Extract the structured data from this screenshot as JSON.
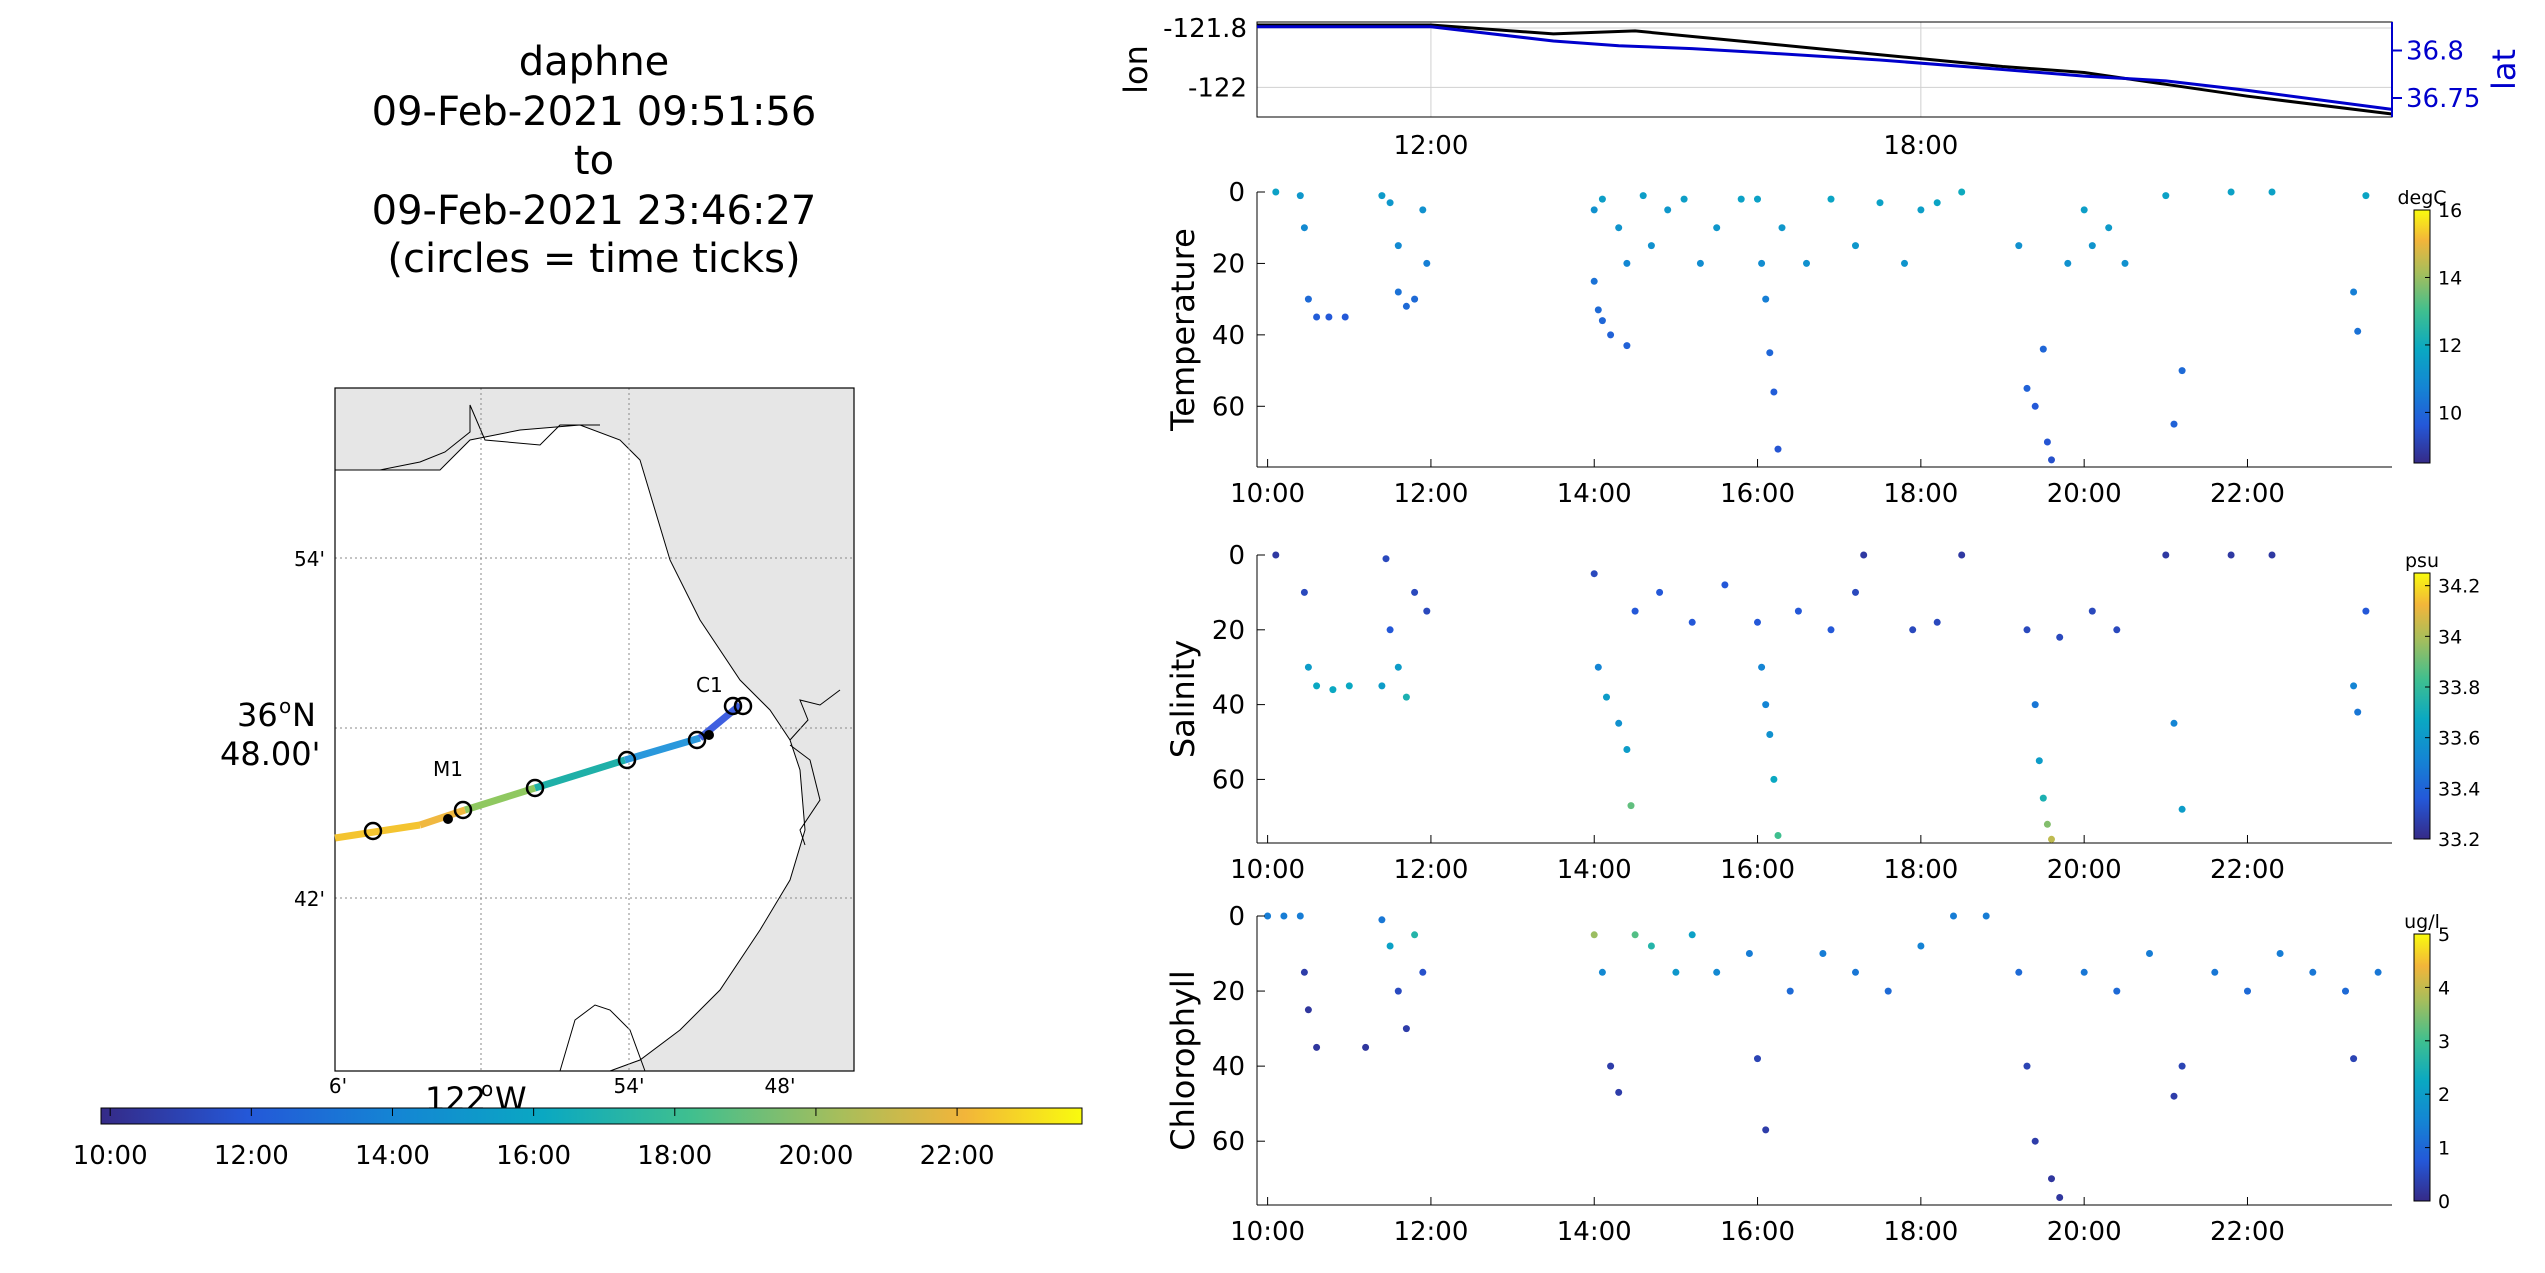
{
  "title_lines": [
    "daphne",
    "09-Feb-2021 09:51:56",
    "to",
    "09-Feb-2021 23:46:27",
    "(circles = time ticks)"
  ],
  "map": {
    "lat_labels": [
      "54'",
      "36",
      "o",
      "N",
      "48.00'",
      "42'"
    ],
    "lon_labels": [
      "6'",
      "122",
      "o",
      "W",
      "54'",
      "48'"
    ],
    "stations": [
      {
        "name": "M1"
      },
      {
        "name": "C1"
      }
    ],
    "time_colorbar_ticks": [
      "10:00",
      "12:00",
      "14:00",
      "16:00",
      "18:00",
      "20:00",
      "22:00"
    ]
  },
  "colors": {
    "black_line": "#000000",
    "blue_line": "#0000cc",
    "land": "#e6e6e6",
    "grid": "#d0d0d0"
  },
  "chart_data": [
    {
      "type": "line",
      "ylabel": "lon",
      "y2label": "lat",
      "x_ticks": [
        "12:00",
        "18:00"
      ],
      "y_ticks": [
        "-121.8",
        "-122"
      ],
      "y2_ticks": [
        "36.8",
        "36.75"
      ],
      "x_range_hours": [
        9.87,
        23.77
      ],
      "ylim": [
        -122.1,
        -121.78
      ],
      "y2lim": [
        36.73,
        36.83
      ],
      "series": [
        {
          "name": "lon",
          "color": "#000000",
          "x": [
            9.87,
            12.0,
            13.5,
            14.5,
            16.0,
            17.5,
            19.0,
            20.0,
            21.0,
            22.0,
            23.77
          ],
          "values": [
            -121.79,
            -121.79,
            -121.82,
            -121.81,
            -121.85,
            -121.89,
            -121.93,
            -121.95,
            -121.99,
            -122.03,
            -122.09
          ]
        },
        {
          "name": "lat",
          "color": "#0000cc",
          "x": [
            9.87,
            12.0,
            13.5,
            14.3,
            15.2,
            16.0,
            17.5,
            19.0,
            20.0,
            21.0,
            22.0,
            23.77
          ],
          "values": [
            36.825,
            36.825,
            36.81,
            36.805,
            36.802,
            36.798,
            36.79,
            36.78,
            36.773,
            36.768,
            36.758,
            36.738
          ]
        }
      ]
    },
    {
      "type": "scatter",
      "ylabel": "Temperature",
      "colorbar_unit": "degC",
      "colorbar_ticks": [
        "16",
        "14",
        "12",
        "10"
      ],
      "x_ticks": [
        "10:00",
        "12:00",
        "14:00",
        "16:00",
        "18:00",
        "20:00",
        "22:00"
      ],
      "y_ticks": [
        "0",
        "20",
        "40",
        "60"
      ],
      "ylim": [
        0,
        77
      ],
      "clim": [
        8.5,
        16
      ],
      "points": [
        [
          10.1,
          0,
          11.5
        ],
        [
          10.4,
          1,
          11.2
        ],
        [
          10.45,
          10,
          10.8
        ],
        [
          10.5,
          30,
          10.0
        ],
        [
          10.6,
          35,
          9.7
        ],
        [
          10.75,
          35,
          9.6
        ],
        [
          10.95,
          35,
          9.6
        ],
        [
          11.4,
          1,
          11.3
        ],
        [
          11.5,
          3,
          11.2
        ],
        [
          11.6,
          15,
          10.8
        ],
        [
          11.6,
          28,
          10.2
        ],
        [
          11.7,
          32,
          10.0
        ],
        [
          11.8,
          30,
          10.0
        ],
        [
          11.9,
          5,
          11.0
        ],
        [
          11.95,
          20,
          10.5
        ],
        [
          14.0,
          5,
          11.0
        ],
        [
          14.0,
          25,
          10.2
        ],
        [
          14.05,
          33,
          10.0
        ],
        [
          14.1,
          2,
          11.4
        ],
        [
          14.1,
          36,
          9.9
        ],
        [
          14.2,
          40,
          9.8
        ],
        [
          14.3,
          10,
          11.1
        ],
        [
          14.4,
          20,
          10.7
        ],
        [
          14.4,
          43,
          9.8
        ],
        [
          14.6,
          1,
          11.4
        ],
        [
          14.7,
          15,
          11.0
        ],
        [
          14.9,
          5,
          11.2
        ],
        [
          15.1,
          2,
          11.4
        ],
        [
          15.3,
          20,
          10.9
        ],
        [
          15.5,
          10,
          11.2
        ],
        [
          15.8,
          2,
          11.5
        ],
        [
          16.0,
          2,
          11.5
        ],
        [
          16.05,
          20,
          10.9
        ],
        [
          16.1,
          30,
          10.5
        ],
        [
          16.15,
          45,
          9.9
        ],
        [
          16.2,
          56,
          9.7
        ],
        [
          16.25,
          72,
          9.5
        ],
        [
          16.3,
          10,
          11.2
        ],
        [
          16.6,
          20,
          11.0
        ],
        [
          16.9,
          2,
          11.6
        ],
        [
          17.2,
          15,
          11.2
        ],
        [
          17.5,
          3,
          11.5
        ],
        [
          17.8,
          20,
          11.1
        ],
        [
          18.0,
          5,
          11.4
        ],
        [
          18.2,
          3,
          11.6
        ],
        [
          18.5,
          0,
          11.8
        ],
        [
          19.2,
          15,
          11.0
        ],
        [
          19.3,
          55,
          9.8
        ],
        [
          19.4,
          60,
          9.6
        ],
        [
          19.5,
          44,
          9.9
        ],
        [
          19.55,
          70,
          9.5
        ],
        [
          19.6,
          75,
          9.4
        ],
        [
          19.8,
          20,
          11.0
        ],
        [
          20.0,
          5,
          11.4
        ],
        [
          20.1,
          15,
          11.1
        ],
        [
          20.3,
          10,
          11.3
        ],
        [
          20.5,
          20,
          11.0
        ],
        [
          21.0,
          1,
          11.5
        ],
        [
          21.2,
          50,
          10.0
        ],
        [
          21.1,
          65,
          9.8
        ],
        [
          21.8,
          0,
          11.5
        ],
        [
          22.3,
          0,
          11.5
        ],
        [
          23.3,
          28,
          10.5
        ],
        [
          23.35,
          39,
          10.2
        ],
        [
          23.45,
          1,
          11.6
        ]
      ]
    },
    {
      "type": "scatter",
      "ylabel": "Salinity",
      "colorbar_unit": "psu",
      "colorbar_ticks": [
        "34.2",
        "34",
        "33.8",
        "33.6",
        "33.4",
        "33.2"
      ],
      "x_ticks": [
        "10:00",
        "12:00",
        "14:00",
        "16:00",
        "18:00",
        "20:00",
        "22:00"
      ],
      "y_ticks": [
        "0",
        "20",
        "40",
        "60"
      ],
      "ylim": [
        0,
        77
      ],
      "clim": [
        33.2,
        34.25
      ],
      "points": [
        [
          10.1,
          0,
          33.25
        ],
        [
          10.45,
          10,
          33.3
        ],
        [
          10.5,
          30,
          33.6
        ],
        [
          10.6,
          35,
          33.65
        ],
        [
          10.8,
          36,
          33.65
        ],
        [
          11.0,
          35,
          33.65
        ],
        [
          11.4,
          35,
          33.6
        ],
        [
          11.45,
          1,
          33.3
        ],
        [
          11.5,
          20,
          33.35
        ],
        [
          11.6,
          30,
          33.6
        ],
        [
          11.7,
          38,
          33.7
        ],
        [
          11.8,
          10,
          33.3
        ],
        [
          11.95,
          15,
          33.3
        ],
        [
          14.0,
          5,
          33.3
        ],
        [
          14.05,
          30,
          33.5
        ],
        [
          14.15,
          38,
          33.6
        ],
        [
          14.3,
          45,
          33.55
        ],
        [
          14.4,
          52,
          33.6
        ],
        [
          14.45,
          67,
          33.85
        ],
        [
          14.5,
          15,
          33.35
        ],
        [
          14.8,
          10,
          33.35
        ],
        [
          15.2,
          18,
          33.35
        ],
        [
          15.6,
          8,
          33.35
        ],
        [
          16.0,
          18,
          33.35
        ],
        [
          16.05,
          30,
          33.5
        ],
        [
          16.1,
          40,
          33.5
        ],
        [
          16.15,
          48,
          33.55
        ],
        [
          16.2,
          60,
          33.65
        ],
        [
          16.25,
          75,
          33.8
        ],
        [
          16.5,
          15,
          33.35
        ],
        [
          16.9,
          20,
          33.35
        ],
        [
          17.2,
          10,
          33.3
        ],
        [
          17.3,
          0,
          33.25
        ],
        [
          17.9,
          20,
          33.3
        ],
        [
          18.2,
          18,
          33.3
        ],
        [
          18.5,
          0,
          33.25
        ],
        [
          19.3,
          20,
          33.3
        ],
        [
          19.4,
          40,
          33.45
        ],
        [
          19.45,
          55,
          33.6
        ],
        [
          19.5,
          65,
          33.7
        ],
        [
          19.55,
          72,
          33.9
        ],
        [
          19.6,
          76,
          34.0
        ],
        [
          19.7,
          22,
          33.3
        ],
        [
          20.1,
          15,
          33.3
        ],
        [
          20.4,
          20,
          33.3
        ],
        [
          21.0,
          0,
          33.25
        ],
        [
          21.1,
          45,
          33.5
        ],
        [
          21.2,
          68,
          33.6
        ],
        [
          21.8,
          0,
          33.25
        ],
        [
          22.3,
          0,
          33.25
        ],
        [
          23.3,
          35,
          33.5
        ],
        [
          23.35,
          42,
          33.45
        ],
        [
          23.45,
          15,
          33.35
        ]
      ]
    },
    {
      "type": "scatter",
      "ylabel": "Chlorophyll",
      "colorbar_unit": "ug/l",
      "colorbar_ticks": [
        "5",
        "4",
        "3",
        "2",
        "1",
        "0"
      ],
      "x_ticks": [
        "10:00",
        "12:00",
        "14:00",
        "16:00",
        "18:00",
        "20:00",
        "22:00"
      ],
      "y_ticks": [
        "0",
        "20",
        "40",
        "60"
      ],
      "ylim": [
        0,
        77
      ],
      "clim": [
        0,
        5
      ],
      "points": [
        [
          10.0,
          0,
          1.3
        ],
        [
          10.2,
          0,
          1.3
        ],
        [
          10.4,
          0,
          1.3
        ],
        [
          10.45,
          15,
          0.3
        ],
        [
          10.5,
          25,
          0.2
        ],
        [
          10.6,
          35,
          0.2
        ],
        [
          11.2,
          35,
          0.2
        ],
        [
          11.4,
          1,
          1.2
        ],
        [
          11.5,
          8,
          2.0
        ],
        [
          11.6,
          20,
          0.5
        ],
        [
          11.7,
          30,
          0.3
        ],
        [
          11.8,
          5,
          2.5
        ],
        [
          11.9,
          15,
          0.6
        ],
        [
          14.0,
          5,
          3.5
        ],
        [
          14.1,
          15,
          1.5
        ],
        [
          14.2,
          40,
          0.3
        ],
        [
          14.3,
          47,
          0.3
        ],
        [
          14.5,
          5,
          3.0
        ],
        [
          14.7,
          8,
          2.5
        ],
        [
          15.0,
          15,
          1.8
        ],
        [
          15.2,
          5,
          2.0
        ],
        [
          15.5,
          15,
          1.5
        ],
        [
          15.9,
          10,
          1.3
        ],
        [
          16.0,
          38,
          0.4
        ],
        [
          16.1,
          57,
          0.3
        ],
        [
          16.4,
          20,
          1.0
        ],
        [
          16.8,
          10,
          1.3
        ],
        [
          17.2,
          15,
          1.2
        ],
        [
          17.6,
          20,
          1.0
        ],
        [
          18.0,
          8,
          1.4
        ],
        [
          18.4,
          0,
          1.3
        ],
        [
          18.8,
          0,
          1.3
        ],
        [
          19.2,
          15,
          1.0
        ],
        [
          19.3,
          40,
          0.4
        ],
        [
          19.4,
          60,
          0.3
        ],
        [
          19.6,
          70,
          0.2
        ],
        [
          19.7,
          75,
          0.2
        ],
        [
          20.0,
          15,
          1.2
        ],
        [
          20.4,
          20,
          1.0
        ],
        [
          20.8,
          10,
          1.3
        ],
        [
          21.1,
          48,
          0.3
        ],
        [
          21.2,
          40,
          0.4
        ],
        [
          21.6,
          15,
          1.2
        ],
        [
          22.0,
          20,
          1.0
        ],
        [
          22.4,
          10,
          1.3
        ],
        [
          22.8,
          15,
          1.2
        ],
        [
          23.2,
          20,
          1.0
        ],
        [
          23.3,
          38,
          0.4
        ],
        [
          23.6,
          15,
          1.2
        ]
      ]
    }
  ]
}
